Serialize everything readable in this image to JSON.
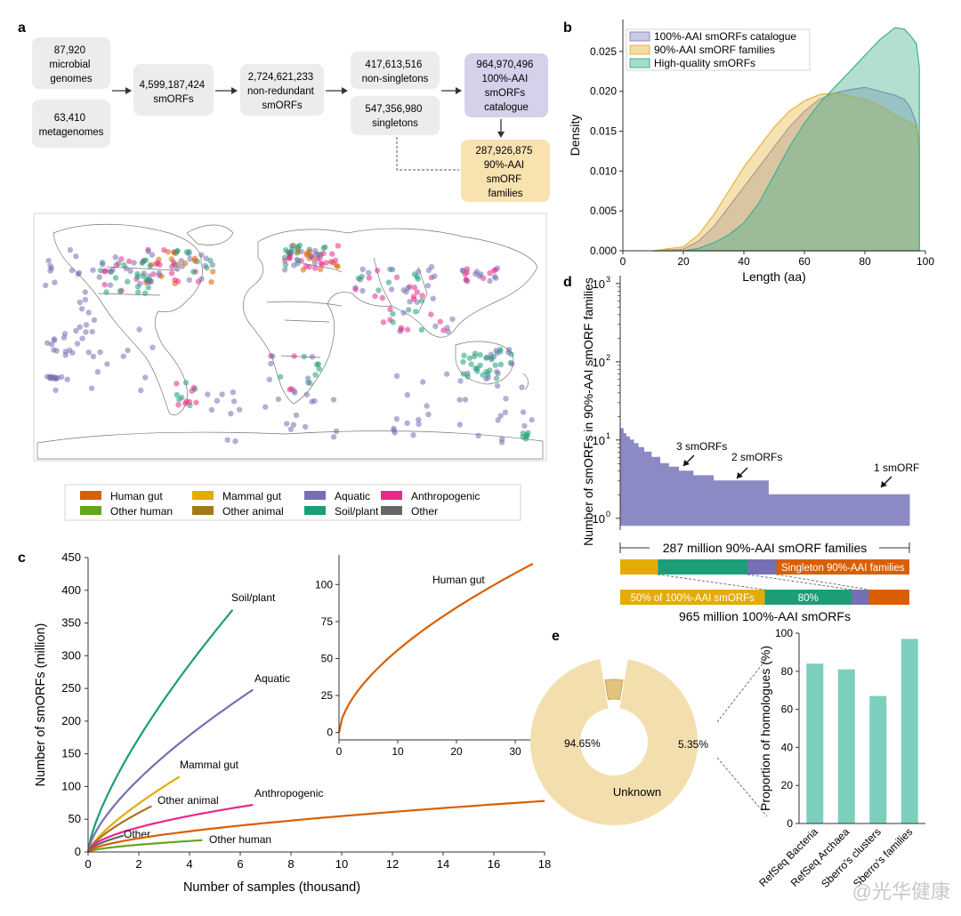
{
  "panel_letters": {
    "a": "a",
    "b": "b",
    "c": "c",
    "d": "d",
    "e": "e"
  },
  "flow": {
    "genomes": [
      "87,920",
      "microbial",
      "genomes"
    ],
    "metagenomes": [
      "63,410",
      "metagenomes"
    ],
    "smorfs": [
      "4,599,187,424",
      "smORFs"
    ],
    "nonredundant": [
      "2,724,621,233",
      "non-redundant",
      "smORFs"
    ],
    "nonsingletons": [
      "417,613,516",
      "non-singletons"
    ],
    "singletons": [
      "547,356,980",
      "singletons"
    ],
    "catalogue": [
      "964,970,496",
      "100%-AAI",
      "smORFs",
      "catalogue"
    ],
    "families": [
      "287,926,875",
      "90%-AAI",
      "smORF",
      "families"
    ],
    "colors": {
      "grey_box": "#ececec",
      "catalogue_box": "#d4d2ea",
      "families_box": "#f7e2b0"
    }
  },
  "map_legend": [
    {
      "label": "Human gut",
      "color": "#d95f02"
    },
    {
      "label": "Mammal gut",
      "color": "#e6ab02"
    },
    {
      "label": "Aquatic",
      "color": "#7570b3"
    },
    {
      "label": "Anthropogenic",
      "color": "#e7298a"
    },
    {
      "label": "Other human",
      "color": "#66a61e"
    },
    {
      "label": "Other animal",
      "color": "#a6761d"
    },
    {
      "label": "Soil/plant",
      "color": "#1b9e77"
    },
    {
      "label": "Other",
      "color": "#666666"
    }
  ],
  "chart_data": [
    {
      "panel": "b",
      "type": "area",
      "xlabel": "Length (aa)",
      "ylabel": "Density",
      "xlim": [
        0,
        100
      ],
      "ylim": [
        0,
        0.029
      ],
      "xticks": [
        "0",
        "20",
        "40",
        "60",
        "80",
        "100"
      ],
      "yticks": [
        "0.000",
        "0.005",
        "0.010",
        "0.015",
        "0.020",
        "0.025"
      ],
      "legend_position": "top-left",
      "x": [
        10,
        20,
        25,
        30,
        35,
        40,
        45,
        50,
        55,
        60,
        65,
        70,
        75,
        80,
        85,
        90,
        93,
        95,
        97,
        98
      ],
      "series": [
        {
          "name": "100%-AAI smORFs catalogue",
          "color": "#8c8ac4",
          "values": [
            0,
            0.0002,
            0.0012,
            0.003,
            0.0055,
            0.008,
            0.0105,
            0.013,
            0.0155,
            0.0175,
            0.019,
            0.0198,
            0.0202,
            0.0205,
            0.02,
            0.0195,
            0.019,
            0.018,
            0.016,
            0.013
          ]
        },
        {
          "name": "90%-AAI smORF families",
          "color": "#e6b43c",
          "values": [
            0,
            0.0005,
            0.002,
            0.0045,
            0.0075,
            0.0105,
            0.013,
            0.0155,
            0.0175,
            0.0188,
            0.0196,
            0.0198,
            0.0194,
            0.019,
            0.0182,
            0.017,
            0.0165,
            0.016,
            0.0155,
            0.0125
          ]
        },
        {
          "name": "High-quality smORFs",
          "color": "#41b08c",
          "values": [
            0,
            0.0,
            0.0003,
            0.001,
            0.002,
            0.0035,
            0.006,
            0.0095,
            0.013,
            0.016,
            0.0185,
            0.0205,
            0.0225,
            0.0245,
            0.0265,
            0.028,
            0.0278,
            0.027,
            0.026,
            0.023
          ]
        }
      ]
    },
    {
      "panel": "c",
      "type": "line",
      "xlabel": "Number of samples (thousand)",
      "ylabel": "Number of smORFs (million)",
      "xlim": [
        0,
        18
      ],
      "ylim": [
        0,
        450
      ],
      "xticks": [
        "0",
        "2",
        "4",
        "6",
        "8",
        "10",
        "12",
        "14",
        "16",
        "18"
      ],
      "yticks": [
        "0",
        "50",
        "100",
        "150",
        "200",
        "250",
        "300",
        "350",
        "400",
        "450"
      ],
      "series": [
        {
          "name": "Soil/plant",
          "color": "#1b9e77",
          "x_end": 5.7,
          "y_end": 370,
          "exponent": 0.72
        },
        {
          "name": "Aquatic",
          "color": "#7570b3",
          "x_end": 6.5,
          "y_end": 248,
          "exponent": 0.68
        },
        {
          "name": "Mammal gut",
          "color": "#e6ab02",
          "x_end": 3.6,
          "y_end": 115,
          "exponent": 0.75
        },
        {
          "name": "Other animal",
          "color": "#a6761d",
          "x_end": 2.5,
          "y_end": 70,
          "exponent": 0.7
        },
        {
          "name": "Anthropogenic",
          "color": "#e7298a",
          "x_end": 6.5,
          "y_end": 72,
          "exponent": 0.55
        },
        {
          "name": "Other",
          "color": "#666666",
          "x_end": 1.4,
          "y_end": 25,
          "exponent": 0.6
        },
        {
          "name": "Other human",
          "color": "#66a61e",
          "x_end": 4.5,
          "y_end": 18,
          "exponent": 0.6
        },
        {
          "name": "Human gut",
          "color": "#d95f02",
          "x_end": 18,
          "y_end": 78,
          "exponent": 0.6
        }
      ]
    },
    {
      "panel": "c-inset",
      "type": "line",
      "xlim": [
        0,
        35
      ],
      "ylim": [
        -5,
        120
      ],
      "xticks": [
        "0",
        "10",
        "20",
        "30"
      ],
      "yticks": [
        "0",
        "25",
        "50",
        "75",
        "100"
      ],
      "series": [
        {
          "name": "Human gut",
          "color": "#d95f02",
          "x_end": 33,
          "y_end": 114,
          "exponent": 0.6
        }
      ]
    },
    {
      "panel": "d",
      "type": "bar",
      "ylabel": "Number of smORFs in 90%-AAI smORF families",
      "yscale": "log",
      "yticks": [
        "10",
        "10",
        "10",
        "10"
      ],
      "ytick_exponents": [
        "0",
        "1",
        "2",
        "3"
      ],
      "families_axis_label": "287 million 90%-AAI smORF families",
      "annotations": [
        "3 smORFs",
        "2 smORFs",
        "1 smORF"
      ],
      "step_heights": [
        14,
        12,
        11,
        10,
        9,
        8,
        7,
        6,
        5,
        4.5,
        4,
        3.5,
        3,
        2
      ],
      "stack_top": [
        {
          "label": "",
          "fraction": 0.13,
          "color": "#e6ab02"
        },
        {
          "label": "",
          "fraction": 0.31,
          "color": "#1b9e77"
        },
        {
          "label": "",
          "fraction": 0.1,
          "color": "#7570b3"
        },
        {
          "label": "Singleton 90%-AAI families",
          "fraction": 0.46,
          "color": "#d95f02"
        }
      ],
      "stack_bottom": [
        {
          "label": "50% of 100%-AAI smORFs",
          "fraction": 0.5,
          "color": "#e6ab02"
        },
        {
          "label": "80%",
          "fraction": 0.3,
          "color": "#1b9e77"
        },
        {
          "label": "",
          "fraction": 0.06,
          "color": "#7570b3"
        },
        {
          "label": "",
          "fraction": 0.14,
          "color": "#d95f02"
        }
      ],
      "bottom_label": "965 million 100%-AAI smORFs",
      "color": "#8c8ac4"
    },
    {
      "panel": "e-donut",
      "type": "pie",
      "slices": [
        {
          "label": "94.65%",
          "value": 94.65,
          "color": "#f3dfae",
          "name": "Unknown"
        },
        {
          "label": "5.35%",
          "value": 5.35,
          "color": "#e2c27d",
          "name": ""
        }
      ]
    },
    {
      "panel": "e-bar",
      "type": "bar",
      "ylabel": "Proportion of homologues (%)",
      "ylim": [
        0,
        100
      ],
      "yticks": [
        "0",
        "20",
        "40",
        "60",
        "80",
        "100"
      ],
      "categories": [
        "RefSeq Bacteria",
        "RefSeq Archaea",
        "Sberro's clusters",
        "Sberro's families"
      ],
      "values": [
        84,
        81,
        67,
        97
      ],
      "color": "#7dcfbd"
    }
  ],
  "watermark": "@光华健康"
}
